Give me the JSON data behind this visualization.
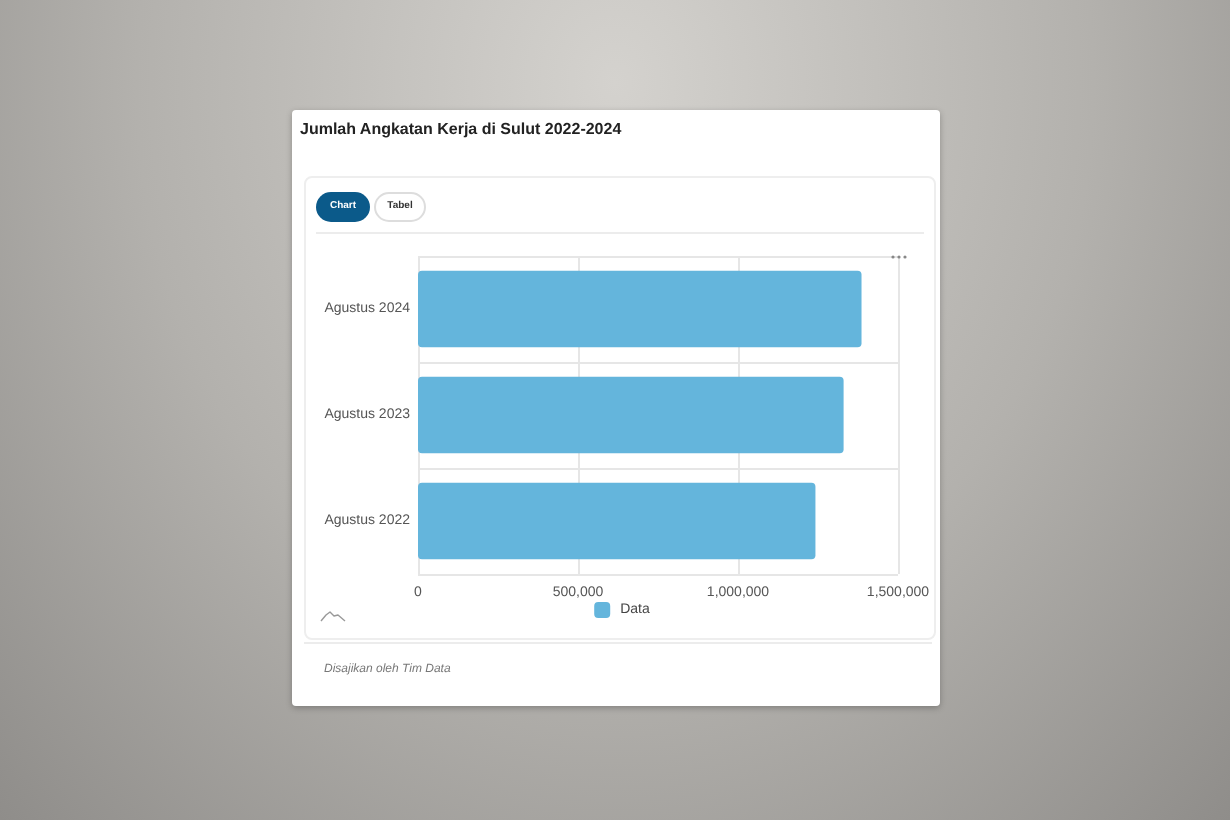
{
  "chart_data": {
    "type": "bar",
    "orientation": "horizontal",
    "title": "Jumlah Angkatan Kerja di Sulut 2022-2024",
    "categories": [
      "Agustus 2024",
      "Agustus 2023",
      "Agustus 2022"
    ],
    "series": [
      {
        "name": "Data",
        "color": "#64b5dc",
        "values": [
          1386000,
          1330000,
          1242000
        ]
      }
    ],
    "xlim": [
      0,
      1500000
    ],
    "xticks": [
      {
        "value": 0,
        "label": "0"
      },
      {
        "value": 500000,
        "label": "500,000"
      },
      {
        "value": 1000000,
        "label": "1,000,000"
      },
      {
        "value": 1500000,
        "label": "1,500,000"
      }
    ],
    "grid": true,
    "legend": "bottom",
    "annotations": [
      "Chart",
      "Tabel",
      "Disajikan oleh Tim Data"
    ]
  }
}
